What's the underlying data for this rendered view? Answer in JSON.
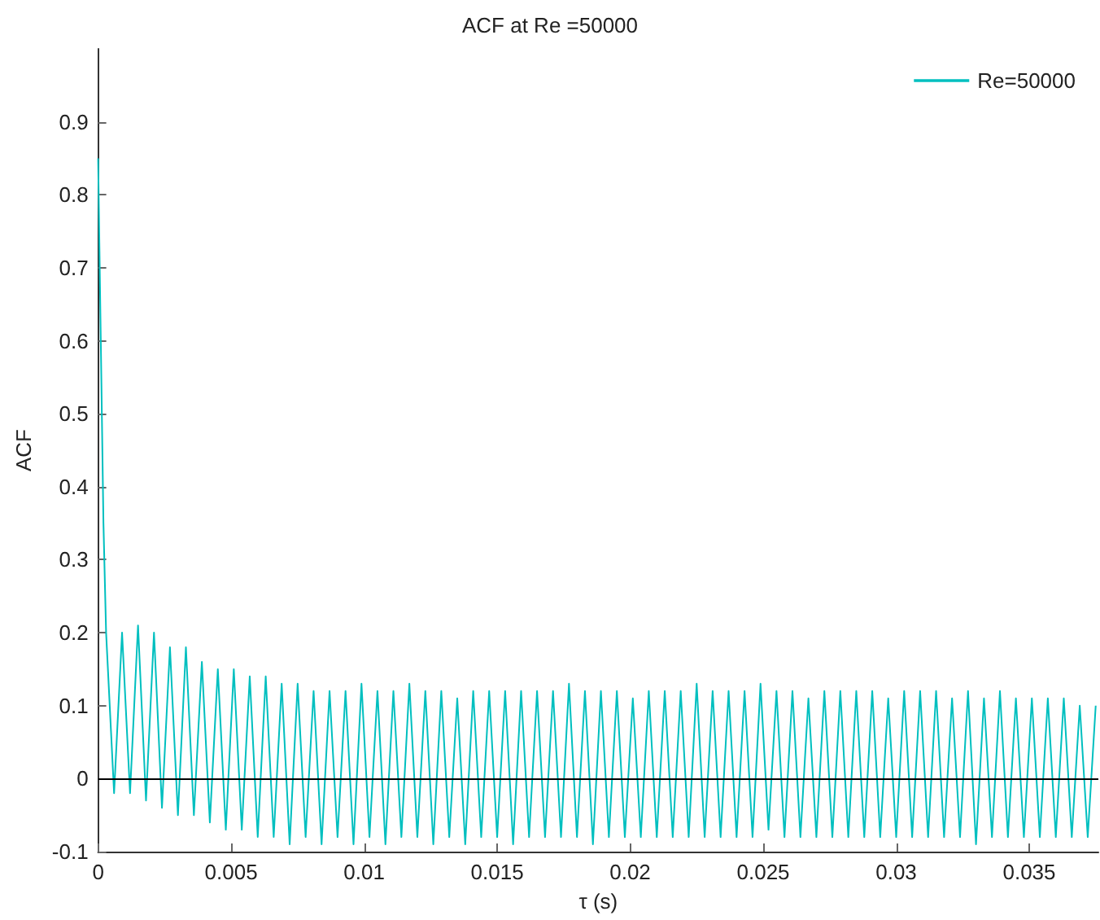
{
  "chart_data": {
    "type": "line",
    "title": "ACF at Re =50000",
    "xlabel": "τ (s)",
    "ylabel": "ACF",
    "xlim": [
      0,
      0.0376
    ],
    "xticks": [
      0,
      0.005,
      0.01,
      0.015,
      0.02,
      0.025,
      0.03,
      0.035
    ],
    "ylim": [
      -0.1,
      1
    ],
    "yticks": [
      -0.1,
      0,
      0.1,
      0.2,
      0.3,
      0.4,
      0.5,
      0.6,
      0.7,
      0.8,
      0.9
    ],
    "grid": false,
    "legend": "top right",
    "marker": "none",
    "line_style": "solid",
    "ref_lines": [
      {
        "axis": "y",
        "value": 0,
        "color": "#000000"
      }
    ],
    "series": [
      {
        "name": "Re=50000",
        "color": "#00bfbf",
        "x": [
          0,
          0.0001,
          0.0002,
          0.0003,
          0.0006,
          0.0009,
          0.0012,
          0.0015,
          0.0018,
          0.0021,
          0.0024,
          0.0027,
          0.003,
          0.0033,
          0.0036,
          0.0039,
          0.0042,
          0.0045,
          0.0048,
          0.0051,
          0.0054,
          0.0057,
          0.006,
          0.0063,
          0.0066,
          0.0069,
          0.0072,
          0.0075,
          0.0078,
          0.0081,
          0.0084,
          0.0087,
          0.009,
          0.0093,
          0.0096,
          0.0099,
          0.0102,
          0.0105,
          0.0108,
          0.0111,
          0.0114,
          0.0117,
          0.012,
          0.0123,
          0.0126,
          0.0129,
          0.0132,
          0.0135,
          0.0138,
          0.0141,
          0.0144,
          0.0147,
          0.015,
          0.0153,
          0.0156,
          0.0159,
          0.0162,
          0.0165,
          0.0168,
          0.0171,
          0.0174,
          0.0177,
          0.018,
          0.0183,
          0.0186,
          0.0189,
          0.0192,
          0.0195,
          0.0198,
          0.0201,
          0.0204,
          0.0207,
          0.021,
          0.0213,
          0.0216,
          0.0219,
          0.0222,
          0.0225,
          0.0228,
          0.0231,
          0.0234,
          0.0237,
          0.024,
          0.0243,
          0.0246,
          0.0249,
          0.0252,
          0.0255,
          0.0258,
          0.0261,
          0.0264,
          0.0267,
          0.027,
          0.0273,
          0.0276,
          0.0279,
          0.0282,
          0.0285,
          0.0288,
          0.0291,
          0.0294,
          0.0297,
          0.03,
          0.0303,
          0.0306,
          0.0309,
          0.0312,
          0.0315,
          0.0318,
          0.0321,
          0.0324,
          0.0327,
          0.033,
          0.0333,
          0.0336,
          0.0339,
          0.0342,
          0.0345,
          0.0348,
          0.0351,
          0.0354,
          0.0357,
          0.036,
          0.0363,
          0.0366,
          0.0369,
          0.0372,
          0.0375
        ],
        "values": [
          0.85,
          0.6,
          0.35,
          0.2,
          -0.02,
          0.2,
          -0.02,
          0.21,
          -0.03,
          0.2,
          -0.04,
          0.18,
          -0.05,
          0.18,
          -0.05,
          0.16,
          -0.06,
          0.15,
          -0.07,
          0.15,
          -0.07,
          0.14,
          -0.08,
          0.14,
          -0.08,
          0.13,
          -0.09,
          0.13,
          -0.08,
          0.12,
          -0.09,
          0.12,
          -0.08,
          0.12,
          -0.09,
          0.13,
          -0.08,
          0.12,
          -0.09,
          0.12,
          -0.08,
          0.13,
          -0.08,
          0.12,
          -0.09,
          0.12,
          -0.08,
          0.11,
          -0.09,
          0.12,
          -0.08,
          0.12,
          -0.08,
          0.12,
          -0.09,
          0.12,
          -0.08,
          0.12,
          -0.08,
          0.12,
          -0.08,
          0.13,
          -0.08,
          0.12,
          -0.09,
          0.12,
          -0.08,
          0.12,
          -0.08,
          0.11,
          -0.08,
          0.12,
          -0.08,
          0.12,
          -0.08,
          0.12,
          -0.08,
          0.13,
          -0.08,
          0.12,
          -0.08,
          0.12,
          -0.08,
          0.12,
          -0.08,
          0.13,
          -0.07,
          0.12,
          -0.08,
          0.12,
          -0.08,
          0.11,
          -0.08,
          0.12,
          -0.08,
          0.12,
          -0.08,
          0.12,
          -0.08,
          0.12,
          -0.08,
          0.11,
          -0.08,
          0.12,
          -0.08,
          0.12,
          -0.08,
          0.12,
          -0.08,
          0.11,
          -0.08,
          0.12,
          -0.09,
          0.11,
          -0.08,
          0.12,
          -0.08,
          0.11,
          -0.08,
          0.11,
          -0.08,
          0.11,
          -0.08,
          0.11,
          -0.08,
          0.1,
          -0.08,
          0.1
        ]
      }
    ]
  }
}
